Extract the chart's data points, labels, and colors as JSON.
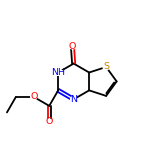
{
  "bg_color": "#ffffff",
  "bond_color": "#000000",
  "double_bond_color": "#0000ff",
  "atom_colors": {
    "N": "#0000ff",
    "O": "#ff0000",
    "S": "#cc8800",
    "C": "#000000",
    "H": "#000000"
  },
  "figsize": [
    1.52,
    1.52
  ],
  "dpi": 100,
  "lw": 1.3
}
